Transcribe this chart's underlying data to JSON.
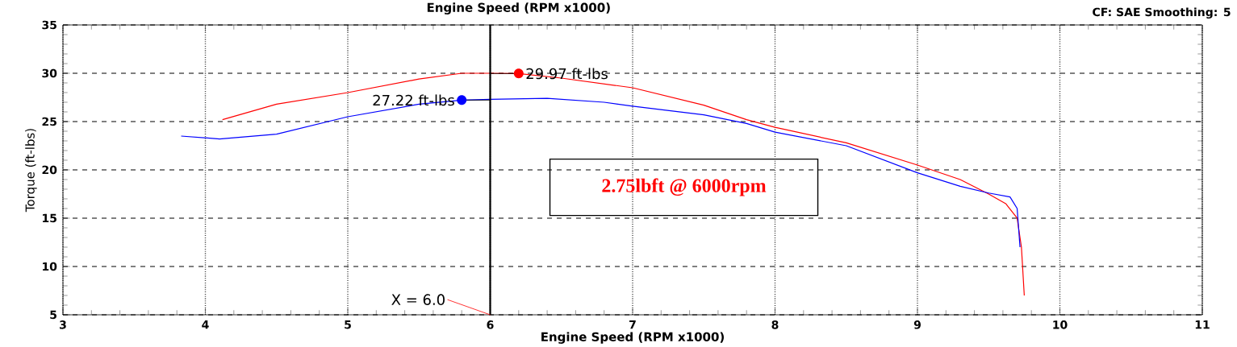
{
  "chart_data": {
    "type": "line",
    "title": "Engine Speed (RPM x1000)",
    "xlabel": "Engine Speed (RPM x1000)",
    "ylabel": "Torque (ft-lbs)",
    "x": [
      3.83,
      4.1,
      4.5,
      5.0,
      5.5,
      5.8,
      6.0,
      6.4,
      6.8,
      7.0,
      7.5,
      7.8,
      8.0,
      8.5,
      9.0,
      9.3,
      9.5,
      9.65,
      9.7,
      9.72
    ],
    "series": [
      {
        "color": "#ff0000",
        "x": [
          4.12,
          4.5,
          5.0,
          5.5,
          5.8,
          6.0,
          6.2,
          6.5,
          7.0,
          7.5,
          7.8,
          8.0,
          8.5,
          9.0,
          9.3,
          9.5,
          9.62,
          9.7,
          9.73,
          9.75
        ],
        "values": [
          25.2,
          26.8,
          28.0,
          29.4,
          30.0,
          30.0,
          29.97,
          29.5,
          28.5,
          26.7,
          25.2,
          24.4,
          22.8,
          20.5,
          19.0,
          17.5,
          16.5,
          15.0,
          12.0,
          7.0
        ]
      },
      {
        "color": "#0000ff",
        "values": [
          23.5,
          23.2,
          23.7,
          25.5,
          26.8,
          27.22,
          27.3,
          27.4,
          27.0,
          26.6,
          25.7,
          24.8,
          23.9,
          22.5,
          19.7,
          18.3,
          17.6,
          17.2,
          16.0,
          12.0
        ]
      }
    ],
    "xlim": [
      3,
      11
    ],
    "xticks": [
      3,
      4,
      5,
      6,
      7,
      8,
      9,
      10,
      11
    ],
    "ylim": [
      5,
      35
    ],
    "yticks": [
      5,
      10,
      15,
      20,
      25,
      30,
      35
    ],
    "grid": true,
    "marker": "none",
    "line_style": "solid",
    "ref_lines": [
      {
        "axis": "x",
        "value": 6,
        "label": "X = 6.0"
      }
    ],
    "annotations": [
      {
        "text": "29.97 ft-lbs",
        "x": 6.2,
        "y": 29.97
      },
      {
        "text": "27.22 ft-lbs",
        "x": 5.8,
        "y": 27.22
      },
      "2.75lbft @ 6000rpm",
      "CF: SAE  Smoothing: 5"
    ]
  }
}
